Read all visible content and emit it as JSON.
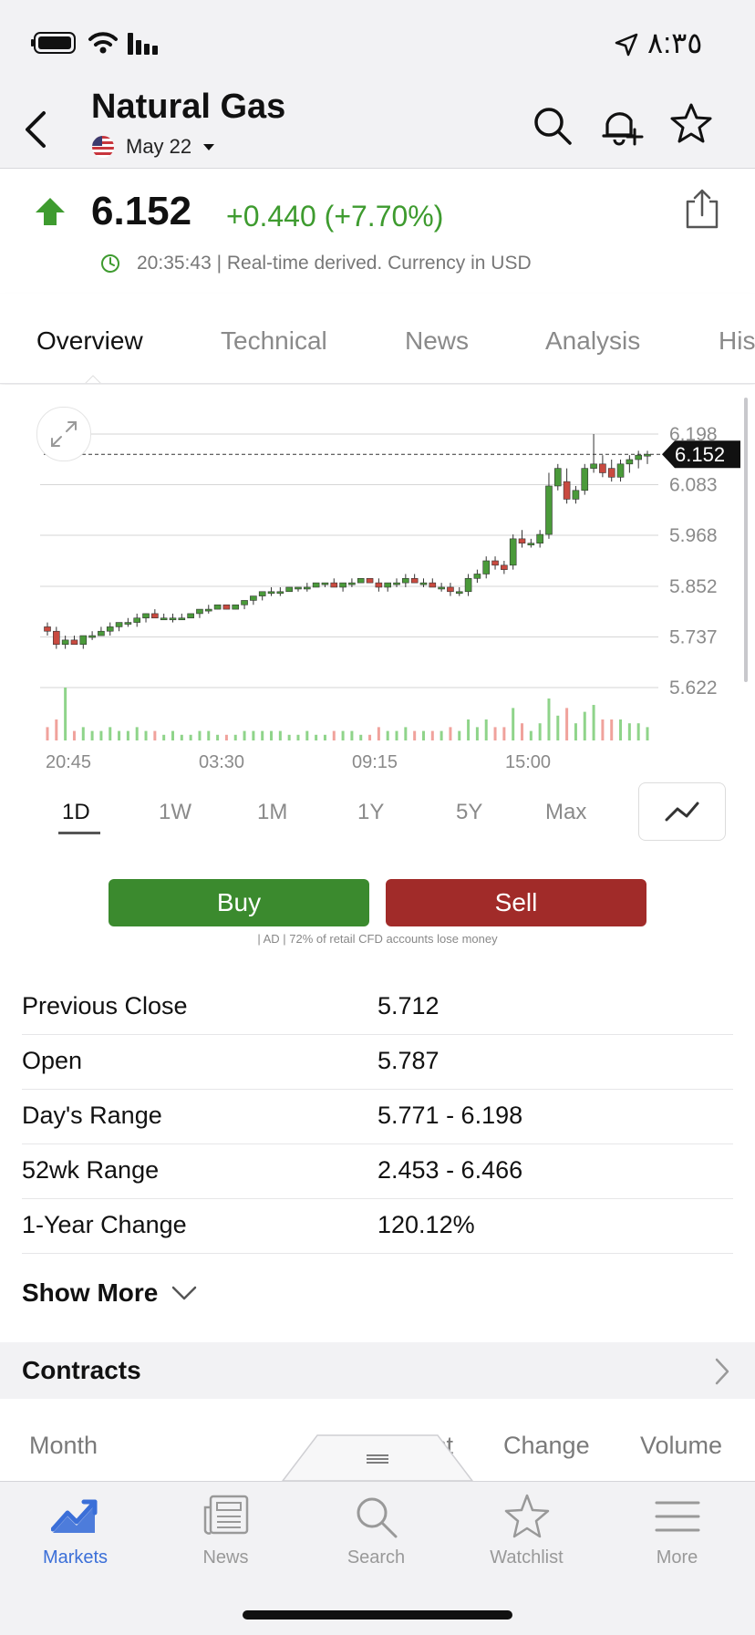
{
  "status_bar": {
    "time": "٨:٣٥"
  },
  "header": {
    "title": "Natural Gas",
    "contract_month": "May 22"
  },
  "quote": {
    "price": "6.152",
    "change": "+0.440 (+7.70%)",
    "realtime_note": "20:35:43 | Real-time derived. Currency in USD"
  },
  "tabs": [
    "Overview",
    "Technical",
    "News",
    "Analysis",
    "His"
  ],
  "chart": {
    "price_labels": [
      "6.198",
      "6.083",
      "5.968",
      "5.852",
      "5.737",
      "5.622"
    ],
    "current_price_tag": "6.152",
    "time_labels": [
      "20:45",
      "03:30",
      "09:15",
      "15:00"
    ]
  },
  "chart_data": {
    "type": "candlestick",
    "ylim": [
      5.622,
      6.198
    ],
    "yticks": [
      6.198,
      6.083,
      5.968,
      5.852,
      5.737,
      5.622
    ],
    "current_price": 6.152,
    "xticks": [
      "20:45",
      "03:30",
      "09:15",
      "15:00"
    ],
    "candles": [
      {
        "o": 5.76,
        "h": 5.77,
        "l": 5.74,
        "c": 5.75
      },
      {
        "o": 5.75,
        "h": 5.76,
        "l": 5.71,
        "c": 5.72
      },
      {
        "o": 5.72,
        "h": 5.74,
        "l": 5.71,
        "c": 5.73
      },
      {
        "o": 5.73,
        "h": 5.74,
        "l": 5.72,
        "c": 5.72
      },
      {
        "o": 5.72,
        "h": 5.74,
        "l": 5.71,
        "c": 5.74
      },
      {
        "o": 5.74,
        "h": 5.75,
        "l": 5.73,
        "c": 5.74
      },
      {
        "o": 5.74,
        "h": 5.76,
        "l": 5.74,
        "c": 5.75
      },
      {
        "o": 5.75,
        "h": 5.77,
        "l": 5.74,
        "c": 5.76
      },
      {
        "o": 5.76,
        "h": 5.77,
        "l": 5.75,
        "c": 5.77
      },
      {
        "o": 5.77,
        "h": 5.78,
        "l": 5.76,
        "c": 5.77
      },
      {
        "o": 5.77,
        "h": 5.79,
        "l": 5.76,
        "c": 5.78
      },
      {
        "o": 5.78,
        "h": 5.79,
        "l": 5.77,
        "c": 5.79
      },
      {
        "o": 5.79,
        "h": 5.8,
        "l": 5.78,
        "c": 5.78
      },
      {
        "o": 5.78,
        "h": 5.79,
        "l": 5.78,
        "c": 5.78
      },
      {
        "o": 5.78,
        "h": 5.79,
        "l": 5.77,
        "c": 5.78
      },
      {
        "o": 5.78,
        "h": 5.79,
        "l": 5.78,
        "c": 5.78
      },
      {
        "o": 5.78,
        "h": 5.79,
        "l": 5.78,
        "c": 5.79
      },
      {
        "o": 5.79,
        "h": 5.8,
        "l": 5.78,
        "c": 5.8
      },
      {
        "o": 5.8,
        "h": 5.81,
        "l": 5.79,
        "c": 5.8
      },
      {
        "o": 5.8,
        "h": 5.81,
        "l": 5.8,
        "c": 5.81
      },
      {
        "o": 5.81,
        "h": 5.81,
        "l": 5.8,
        "c": 5.8
      },
      {
        "o": 5.8,
        "h": 5.81,
        "l": 5.8,
        "c": 5.81
      },
      {
        "o": 5.81,
        "h": 5.82,
        "l": 5.8,
        "c": 5.82
      },
      {
        "o": 5.82,
        "h": 5.83,
        "l": 5.81,
        "c": 5.83
      },
      {
        "o": 5.83,
        "h": 5.84,
        "l": 5.82,
        "c": 5.84
      },
      {
        "o": 5.84,
        "h": 5.85,
        "l": 5.83,
        "c": 5.84
      },
      {
        "o": 5.84,
        "h": 5.85,
        "l": 5.83,
        "c": 5.84
      },
      {
        "o": 5.84,
        "h": 5.85,
        "l": 5.84,
        "c": 5.85
      },
      {
        "o": 5.85,
        "h": 5.85,
        "l": 5.84,
        "c": 5.85
      },
      {
        "o": 5.85,
        "h": 5.86,
        "l": 5.84,
        "c": 5.85
      },
      {
        "o": 5.85,
        "h": 5.86,
        "l": 5.85,
        "c": 5.86
      },
      {
        "o": 5.86,
        "h": 5.86,
        "l": 5.85,
        "c": 5.86
      },
      {
        "o": 5.86,
        "h": 5.87,
        "l": 5.85,
        "c": 5.85
      },
      {
        "o": 5.85,
        "h": 5.86,
        "l": 5.84,
        "c": 5.86
      },
      {
        "o": 5.86,
        "h": 5.87,
        "l": 5.85,
        "c": 5.86
      },
      {
        "o": 5.86,
        "h": 5.87,
        "l": 5.86,
        "c": 5.87
      },
      {
        "o": 5.87,
        "h": 5.87,
        "l": 5.86,
        "c": 5.86
      },
      {
        "o": 5.86,
        "h": 5.87,
        "l": 5.84,
        "c": 5.85
      },
      {
        "o": 5.85,
        "h": 5.86,
        "l": 5.84,
        "c": 5.86
      },
      {
        "o": 5.86,
        "h": 5.87,
        "l": 5.85,
        "c": 5.86
      },
      {
        "o": 5.86,
        "h": 5.88,
        "l": 5.85,
        "c": 5.87
      },
      {
        "o": 5.87,
        "h": 5.88,
        "l": 5.86,
        "c": 5.86
      },
      {
        "o": 5.86,
        "h": 5.87,
        "l": 5.85,
        "c": 5.86
      },
      {
        "o": 5.86,
        "h": 5.87,
        "l": 5.85,
        "c": 5.85
      },
      {
        "o": 5.85,
        "h": 5.86,
        "l": 5.84,
        "c": 5.85
      },
      {
        "o": 5.85,
        "h": 5.86,
        "l": 5.83,
        "c": 5.84
      },
      {
        "o": 5.84,
        "h": 5.85,
        "l": 5.83,
        "c": 5.84
      },
      {
        "o": 5.84,
        "h": 5.88,
        "l": 5.83,
        "c": 5.87
      },
      {
        "o": 5.87,
        "h": 5.89,
        "l": 5.86,
        "c": 5.88
      },
      {
        "o": 5.88,
        "h": 5.92,
        "l": 5.87,
        "c": 5.91
      },
      {
        "o": 5.91,
        "h": 5.92,
        "l": 5.89,
        "c": 5.9
      },
      {
        "o": 5.9,
        "h": 5.91,
        "l": 5.88,
        "c": 5.89
      },
      {
        "o": 5.9,
        "h": 5.97,
        "l": 5.89,
        "c": 5.96
      },
      {
        "o": 5.96,
        "h": 5.98,
        "l": 5.94,
        "c": 5.95
      },
      {
        "o": 5.95,
        "h": 5.96,
        "l": 5.94,
        "c": 5.95
      },
      {
        "o": 5.95,
        "h": 5.98,
        "l": 5.94,
        "c": 5.97
      },
      {
        "o": 5.97,
        "h": 6.11,
        "l": 5.96,
        "c": 6.08
      },
      {
        "o": 6.08,
        "h": 6.13,
        "l": 6.07,
        "c": 6.12
      },
      {
        "o": 6.09,
        "h": 6.12,
        "l": 6.04,
        "c": 6.05
      },
      {
        "o": 6.05,
        "h": 6.08,
        "l": 6.04,
        "c": 6.07
      },
      {
        "o": 6.07,
        "h": 6.13,
        "l": 6.06,
        "c": 6.12
      },
      {
        "o": 6.12,
        "h": 6.198,
        "l": 6.11,
        "c": 6.13
      },
      {
        "o": 6.13,
        "h": 6.15,
        "l": 6.1,
        "c": 6.11
      },
      {
        "o": 6.12,
        "h": 6.14,
        "l": 6.09,
        "c": 6.1
      },
      {
        "o": 6.1,
        "h": 6.14,
        "l": 6.09,
        "c": 6.13
      },
      {
        "o": 6.13,
        "h": 6.15,
        "l": 6.11,
        "c": 6.14
      },
      {
        "o": 6.14,
        "h": 6.16,
        "l": 6.12,
        "c": 6.15
      },
      {
        "o": 6.15,
        "h": 6.16,
        "l": 6.13,
        "c": 6.152
      }
    ]
  },
  "timeframes": [
    "1D",
    "1W",
    "1M",
    "1Y",
    "5Y",
    "Max"
  ],
  "actions": {
    "buy": "Buy",
    "sell": "Sell",
    "disclaimer": "| AD | 72% of retail CFD accounts lose money",
    "buy_color": "#3b8a2e",
    "sell_color": "#a12b29"
  },
  "stats": [
    {
      "label": "Previous Close",
      "value": "5.712"
    },
    {
      "label": "Open",
      "value": "5.787"
    },
    {
      "label": "Day's Range",
      "value": "5.771 - 6.198"
    },
    {
      "label": "52wk Range",
      "value": "2.453 - 6.466"
    },
    {
      "label": "1-Year Change",
      "value": "120.12%"
    }
  ],
  "show_more": "Show More",
  "contracts": {
    "title": "Contracts",
    "columns": [
      "Month",
      "st",
      "Change",
      "Volume"
    ]
  },
  "tab_bar": [
    {
      "label": "Markets",
      "icon": "chart-trend-icon"
    },
    {
      "label": "News",
      "icon": "newspaper-icon"
    },
    {
      "label": "Search",
      "icon": "search-icon"
    },
    {
      "label": "Watchlist",
      "icon": "star-icon"
    },
    {
      "label": "More",
      "icon": "menu-icon"
    }
  ],
  "colors": {
    "up": "#3e9b2f",
    "down": "#d0403a",
    "accent": "#3b6fd8"
  }
}
